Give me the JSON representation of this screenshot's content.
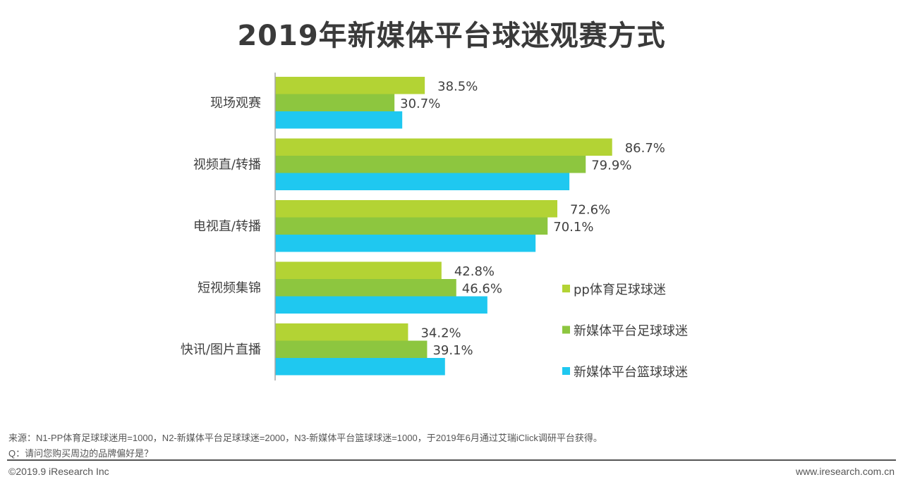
{
  "chart_data": {
    "type": "bar",
    "orientation": "horizontal",
    "title": "2019年新媒体平台球迷观赛方式",
    "categories": [
      "现场观赛",
      "视频直/转播",
      "电视直/转播",
      "短视频集锦",
      "快讯/图片直播"
    ],
    "series": [
      {
        "name": "pp体育足球球迷",
        "color": "#B3D334",
        "values": [
          38.5,
          86.7,
          72.6,
          42.8,
          34.2
        ],
        "labels": [
          "38.5%",
          "86.7%",
          "72.6%",
          "42.8%",
          "34.2%"
        ]
      },
      {
        "name": "新媒体平台足球球迷",
        "color": "#8DC63F",
        "values": [
          30.7,
          79.9,
          70.1,
          46.6,
          39.1
        ],
        "labels": [
          "30.7%",
          "79.9%",
          "70.1%",
          "46.6%",
          "39.1%"
        ]
      },
      {
        "name": "新媒体平台篮球球迷",
        "color": "#1FC8F0",
        "values": [
          32.7,
          75.7,
          67.0,
          54.6,
          43.7
        ],
        "labels": []
      }
    ],
    "xlim": [
      0,
      100
    ],
    "grid": false,
    "legend": "right",
    "xlabel": "",
    "ylabel": ""
  },
  "footer": {
    "source": "来源：N1-PP体育足球球迷用=1000，N2-新媒体平台足球球迷=2000，N3-新媒体平台篮球球迷=1000，于2019年6月通过艾瑞iClick调研平台获得。",
    "question": "Q：请问您购买周边的品牌偏好是？",
    "copyright": "©2019.9 iResearch Inc",
    "url": "www.iresearch.com.cn"
  }
}
